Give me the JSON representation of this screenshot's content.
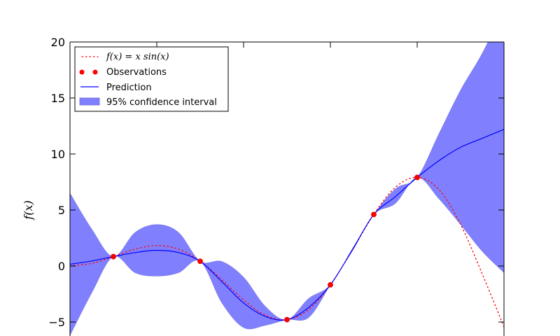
{
  "chart_data": {
    "type": "line",
    "title": "",
    "xlabel": "",
    "ylabel": "f(x)",
    "xlim": [
      0,
      10
    ],
    "ylim": [
      -6.3,
      20
    ],
    "yticks": [
      -5,
      0,
      5,
      10,
      15,
      20
    ],
    "grid": false,
    "legend_position": "top-left",
    "legend": [
      {
        "label": "f(x) = x sin(x)",
        "style": "dotted",
        "color": "#ff0000"
      },
      {
        "label": "Observations",
        "style": "markers",
        "color": "#ff0000"
      },
      {
        "label": "Prediction",
        "style": "solid",
        "color": "#0000ff"
      },
      {
        "label": "95% confidence interval",
        "style": "fill",
        "color": "#8080ff"
      }
    ],
    "series": [
      {
        "name": "f(x) = x sin(x)",
        "kind": "true_function",
        "x": [
          0,
          0.5,
          1,
          1.5,
          2,
          2.5,
          3,
          3.5,
          4,
          4.5,
          5,
          5.5,
          6,
          6.5,
          7,
          7.5,
          8,
          8.5,
          9,
          9.5,
          10
        ],
        "y": [
          0,
          0.24,
          0.84,
          1.5,
          1.82,
          1.5,
          0.42,
          -1.23,
          -3.03,
          -4.4,
          -4.79,
          -3.88,
          -1.68,
          1.39,
          4.6,
          7.04,
          7.91,
          6.83,
          3.71,
          -0.72,
          -5.44
        ]
      },
      {
        "name": "Observations",
        "kind": "points",
        "x": [
          1,
          3,
          5,
          6,
          7,
          8
        ],
        "y": [
          0.84,
          0.42,
          -4.79,
          -1.68,
          4.6,
          7.91
        ]
      },
      {
        "name": "Prediction",
        "kind": "mean",
        "x": [
          0,
          0.5,
          1,
          1.5,
          2,
          2.5,
          3,
          3.5,
          4,
          4.5,
          5,
          5.5,
          6,
          6.5,
          7,
          7.5,
          8,
          8.5,
          9,
          9.5,
          10
        ],
        "y": [
          0.15,
          0.45,
          0.84,
          1.2,
          1.4,
          1.2,
          0.42,
          -1.4,
          -3.3,
          -4.5,
          -4.79,
          -3.7,
          -1.68,
          1.4,
          4.6,
          6.2,
          7.91,
          9.4,
          10.6,
          11.4,
          12.2
        ]
      },
      {
        "name": "95% confidence interval",
        "kind": "band",
        "x": [
          0,
          0.5,
          1,
          1.5,
          2,
          2.5,
          3,
          3.5,
          4,
          4.5,
          5,
          5.5,
          6,
          6.5,
          7,
          7.5,
          8,
          8.5,
          9,
          9.5,
          10
        ],
        "lower": [
          -6.2,
          -2.4,
          0.84,
          -0.6,
          -0.9,
          -0.6,
          0.42,
          -3.3,
          -5.5,
          -5.3,
          -4.79,
          -4.6,
          -1.68,
          1.3,
          4.6,
          5.6,
          7.91,
          6.0,
          3.7,
          1.3,
          -0.6
        ],
        "upper": [
          6.5,
          3.3,
          0.84,
          3.0,
          3.7,
          3.0,
          0.42,
          0.4,
          -1.0,
          -3.6,
          -4.79,
          -2.9,
          -1.68,
          1.5,
          4.6,
          6.9,
          7.91,
          11.8,
          15.7,
          19.0,
          23.0
        ]
      }
    ]
  }
}
